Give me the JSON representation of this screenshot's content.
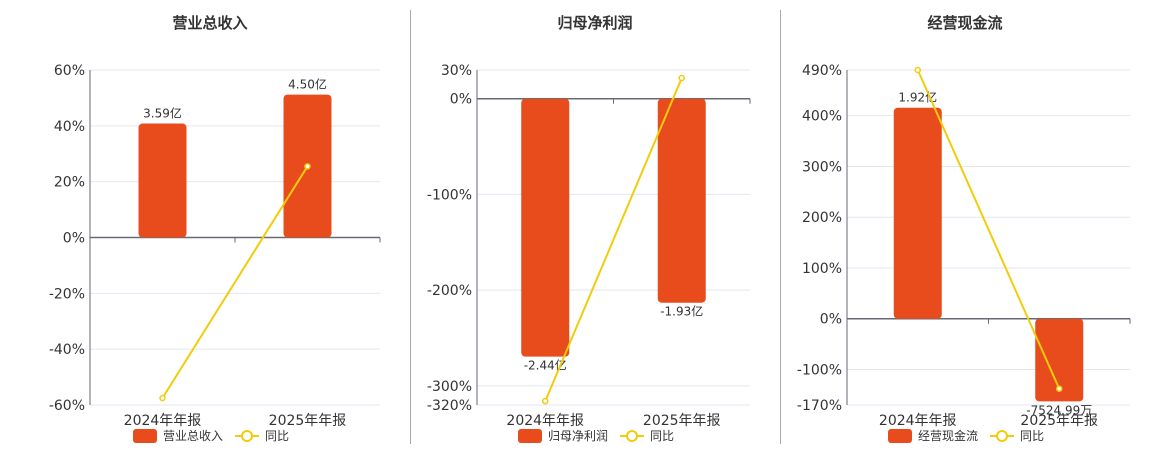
{
  "colors": {
    "bar": "#e84c1c",
    "line": "#f2cc0c",
    "grid": "#e3e7f1",
    "axis": "#666a75",
    "text": "#333333"
  },
  "chart_data": [
    {
      "type": "bar+line",
      "title": "营业总收入",
      "categories": [
        "2024年年报",
        "2025年年报"
      ],
      "bar_series": {
        "name": "营业总收入",
        "values": [
          3.59,
          4.5
        ],
        "labels": [
          "3.59亿",
          "4.50亿"
        ],
        "unit": "亿"
      },
      "line_series": {
        "name": "同比",
        "values": [
          -57.5,
          25.5
        ]
      },
      "yticks": [
        "60%",
        "40%",
        "20%",
        "0%",
        "-20%",
        "-40%",
        "-60%"
      ],
      "ytick_values": [
        60,
        40,
        20,
        0,
        -20,
        -40,
        -60
      ],
      "ylim": [
        -60,
        60
      ],
      "grid": true,
      "legend": "bottom"
    },
    {
      "type": "bar+line",
      "title": "归母净利润",
      "categories": [
        "2024年年报",
        "2025年年报"
      ],
      "bar_series": {
        "name": "归母净利润",
        "values": [
          -2.44,
          -1.93
        ],
        "labels": [
          "-2.44亿",
          "-1.93亿"
        ],
        "unit": "亿"
      },
      "line_series": {
        "name": "同比",
        "values": [
          -316,
          21.6
        ]
      },
      "yticks": [
        "30%",
        "0%",
        "-100%",
        "-200%",
        "-300%",
        "-320%"
      ],
      "ytick_values": [
        30,
        0,
        -100,
        -200,
        -300,
        -320
      ],
      "ylim": [
        -320,
        30
      ],
      "grid": true,
      "legend": "bottom"
    },
    {
      "type": "bar+line",
      "title": "经营现金流",
      "categories": [
        "2024年年报",
        "2025年年报"
      ],
      "bar_series": {
        "name": "经营现金流",
        "values": [
          1.92,
          -0.752499
        ],
        "labels": [
          "1.92亿",
          "-7524.99万"
        ],
        "unit": "亿"
      },
      "line_series": {
        "name": "同比",
        "values": [
          490,
          -138
        ]
      },
      "yticks": [
        "490%",
        "400%",
        "300%",
        "200%",
        "100%",
        "0%",
        "-100%",
        "-170%"
      ],
      "ytick_values": [
        490,
        400,
        300,
        200,
        100,
        0,
        -100,
        -170
      ],
      "ylim": [
        -170,
        490
      ],
      "grid": true,
      "legend": "bottom"
    }
  ]
}
